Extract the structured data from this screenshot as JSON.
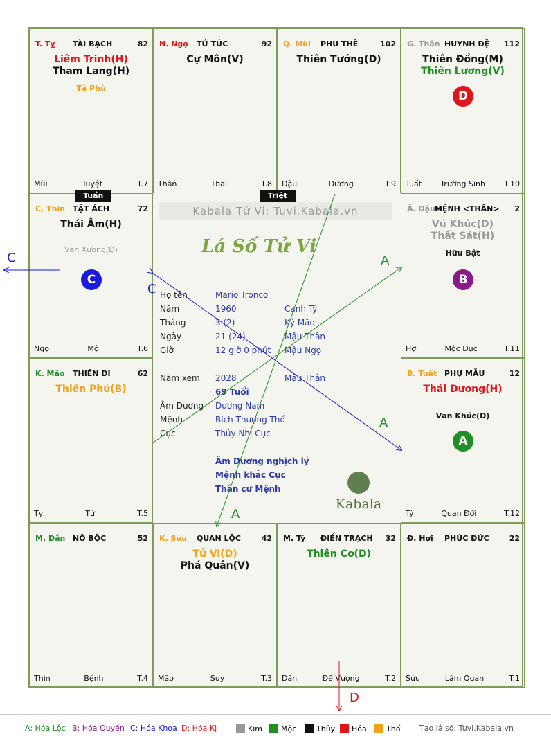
{
  "watermark": "Kabala Tử Vi: Tuvi.Kabala.vn",
  "chart_title": "Lá Số Tử Vi",
  "colors": {
    "red": "#e0151b",
    "green": "#1f8e23",
    "orange": "#f0a21a",
    "gray": "#999999",
    "blue": "#1a1ae0",
    "purple": "#8a1a8a"
  },
  "palaces": {
    "ty": {
      "code": "T. Tỵ",
      "name": "TÀI BẠCH",
      "num": "82",
      "main": [
        "Liêm Trinh(H)",
        "Tham Lang(H)"
      ],
      "minor": "Tả Phù",
      "left": "Mùi",
      "mid": "Tuyệt",
      "right": "T.7"
    },
    "ngo": {
      "code": "N. Ngọ",
      "name": "TỬ TỨC",
      "num": "92",
      "main": [
        "Cự Môn(V)"
      ],
      "left": "Thân",
      "mid": "Thai",
      "right": "T.8"
    },
    "mui": {
      "code": "Q. Mùi",
      "name": "PHU THÊ",
      "num": "102",
      "main": [
        "Thiên Tướng(D)"
      ],
      "left": "Dậu",
      "mid": "Dưỡng",
      "right": "T.9"
    },
    "than": {
      "code": "G. Thân",
      "name": "HUYNH ĐỆ",
      "num": "112",
      "main": [
        "Thiên Đồng(M)",
        "Thiên Lương(V)"
      ],
      "badge": "D",
      "left": "Tuất",
      "mid": "Trường Sinh",
      "right": "T.10"
    },
    "thin": {
      "code": "C. Thìn",
      "name": "TẬT ÁCH",
      "num": "72",
      "main": [
        "Thái Âm(H)"
      ],
      "minor": "Văn Xương(D)",
      "badge": "C",
      "left": "Ngọ",
      "mid": "Mộ",
      "right": "T.6"
    },
    "dau": {
      "code": "Ấ. Dậu",
      "name": "MỆNH <THÂN>",
      "num": "2",
      "main": [
        "Vũ Khúc(D)",
        "Thất Sát(H)"
      ],
      "minor": "Hữu Bật",
      "badge": "B",
      "left": "Hợi",
      "mid": "Mộc Dục",
      "right": "T.11"
    },
    "mao": {
      "code": "K. Mão",
      "name": "THIÊN DI",
      "num": "62",
      "main": [
        "Thiên Phủ(B)"
      ],
      "left": "Tỵ",
      "mid": "Tử",
      "right": "T.5"
    },
    "tuat": {
      "code": "B. Tuất",
      "name": "PHỤ MẪU",
      "num": "12",
      "main": [
        "Thái Dương(H)"
      ],
      "minor": "Văn Khúc(D)",
      "badge": "A",
      "left": "Tý",
      "mid": "Quan Đới",
      "right": "T.12"
    },
    "dan": {
      "code": "M. Dần",
      "name": "NÔ BỘC",
      "num": "52",
      "main": [],
      "left": "Thìn",
      "mid": "Bệnh",
      "right": "T.4"
    },
    "suu": {
      "code": "K. Sửu",
      "name": "QUAN LỘC",
      "num": "42",
      "main": [
        "Tử Vi(D)",
        "Phá Quân(V)"
      ],
      "left": "Mão",
      "mid": "Suy",
      "right": "T.3"
    },
    "tyy": {
      "code": "M. Tý",
      "name": "ĐIỀN TRẠCH",
      "num": "32",
      "main": [
        "Thiên Cơ(D)"
      ],
      "left": "Dần",
      "mid": "Đế Vượng",
      "right": "T.2"
    },
    "hoi": {
      "code": "Đ. Hợi",
      "name": "PHÚC ĐỨC",
      "num": "22",
      "main": [],
      "left": "Sửu",
      "mid": "Lâm Quan",
      "right": "T.1"
    }
  },
  "tags": {
    "tuan": "Tuần",
    "triet": "Triệt"
  },
  "info": {
    "ho_ten": "Họ tên",
    "ho_ten_val": "Mario Tronco",
    "nam": "Năm",
    "nam_val": "1960",
    "nam_can": "Canh Tý",
    "thang": "Tháng",
    "thang_val": "3  (2)",
    "thang_can": "Kỷ Mão",
    "ngay": "Ngày",
    "ngay_val": "21  (24)",
    "ngay_can": "Mậu Thân",
    "gio": "Giờ",
    "gio_val": "12 giờ 0 phút",
    "gio_can": "Mậu Ngọ",
    "nam_xem": "Năm xem",
    "nam_xem_val": "2028",
    "nam_xem_can": "Mậu Thân",
    "tuoi": "69 Tuổi",
    "am_duong": "Âm Dương",
    "am_duong_val": "Dương Nam",
    "menh": "Mệnh",
    "menh_val": "Bích Thượng Thổ",
    "cuc": "Cục",
    "cuc_val": "Thủy Nhị Cục",
    "note1": "Âm Dương nghịch lý",
    "note2": "Mệnh khắc Cục",
    "note3": "Thân cư Mệnh"
  },
  "logo": "Kabala",
  "arrows": {
    "a1": "A",
    "a2": "A",
    "a3": "A",
    "c1": "C",
    "c2": "C",
    "d": "D"
  },
  "legend": {
    "a": "A: Hóa Lộc",
    "b": "B: Hóa Quyền",
    "c": "C: Hóa Khoa",
    "d": "D: Hóa Kị",
    "kim": "Kim",
    "moc": "Mộc",
    "thuy": "Thủy",
    "hoa": "Hỏa",
    "tho": "Thổ",
    "site": "Tạo lá số: Tuvi.Kabala.vn"
  }
}
